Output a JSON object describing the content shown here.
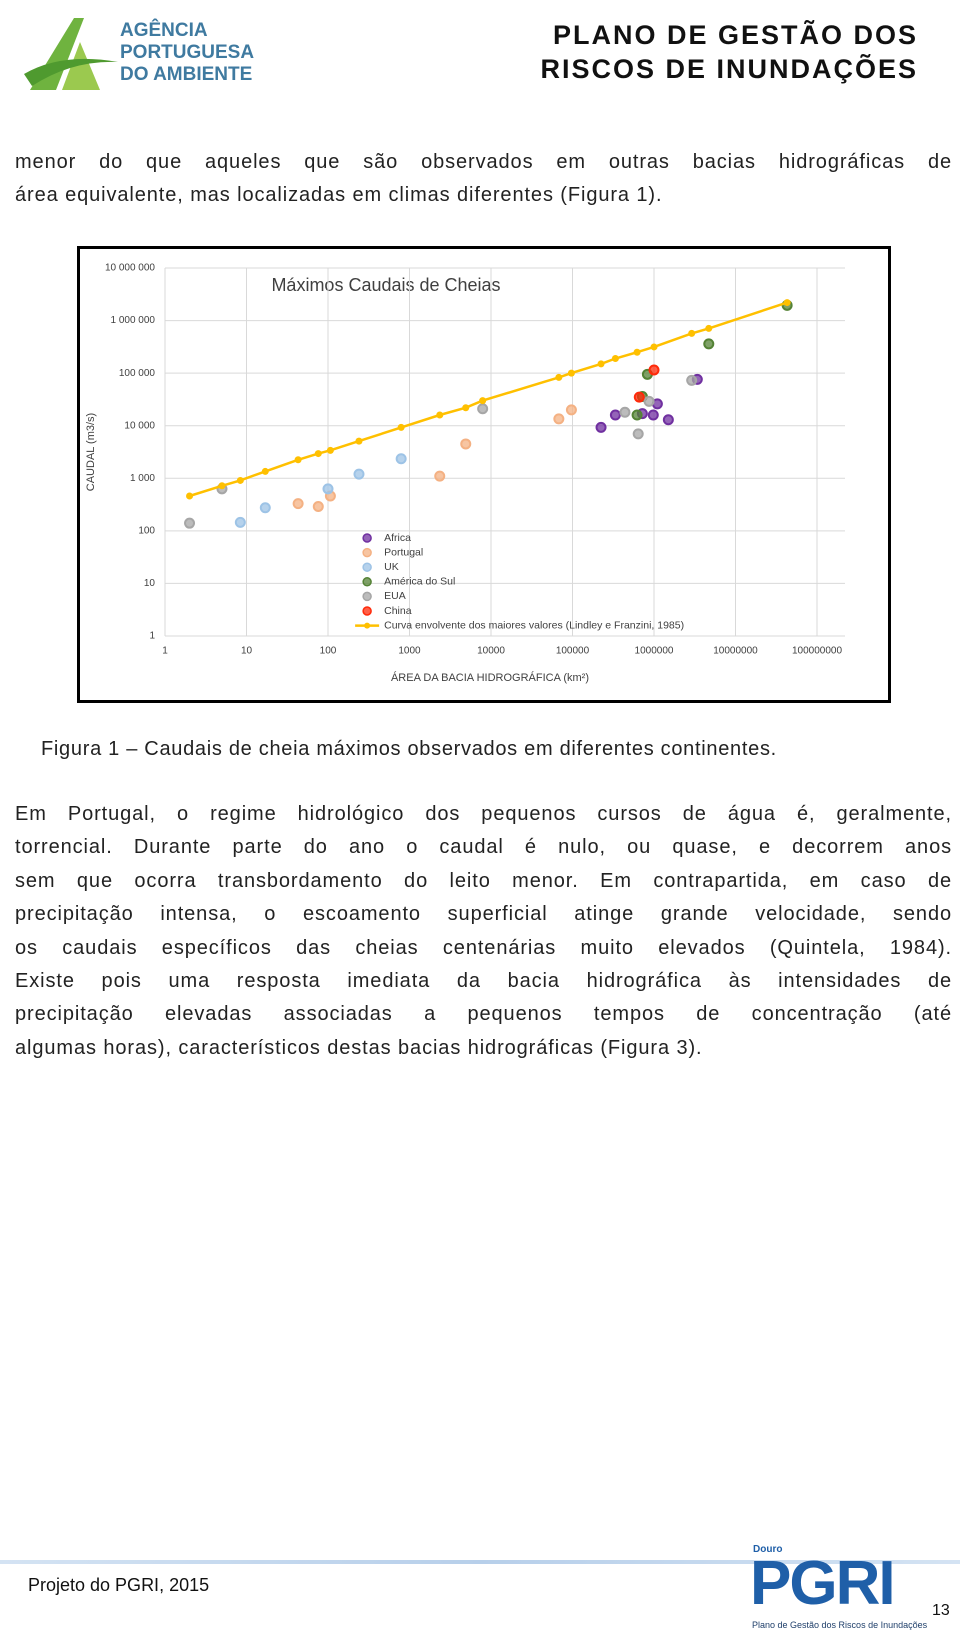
{
  "header": {
    "logo": [
      "AGÊNCIA",
      "PORTUGUESA",
      "DO AMBIENTE"
    ],
    "title": [
      "PLANO DE GESTÃO DOS",
      "RISCOS DE INUNDAÇÕES"
    ]
  },
  "paragraph_1": [
    "menor do que aqueles que são observados em outras bacias hidrográficas de",
    "área equivalente, mas localizadas em climas diferentes (Figura 1)."
  ],
  "chart_data": {
    "type": "scatter",
    "title": "Máximos Caudais de Cheias",
    "x_label": "ÁREA DA BACIA HIDROGRÁFICA (km²)",
    "y_label": "CAUDAL (m3/s)",
    "xscale": "log",
    "yscale": "log",
    "grid": true,
    "legend": "lower center",
    "xlim": [
      1,
      100000000
    ],
    "xticks": [
      1,
      10,
      100,
      1000,
      10000,
      100000,
      1000000,
      10000000,
      100000000
    ],
    "ylim": [
      1,
      10000000
    ],
    "yticks": [
      1,
      10,
      100,
      {
        "value": 1000,
        "label": "1 000"
      },
      {
        "value": 10000,
        "label": "10 000"
      },
      {
        "value": 100000,
        "label": "100 000"
      },
      {
        "value": 1000000,
        "label": "1 000 000"
      },
      {
        "value": 10000000,
        "label": "10 000 000"
      }
    ],
    "series": [
      {
        "name": "Africa",
        "color": "#7030a0",
        "x": [
          224000,
          336000,
          720000,
          980000,
          1100000,
          1500000,
          3400000
        ],
        "values": [
          9300,
          16000,
          17000,
          16000,
          26000,
          13000,
          76000
        ]
      },
      {
        "name": "Portugal",
        "color": "#f4b183",
        "x": [
          43,
          76,
          107,
          2350,
          4900,
          68000,
          97000
        ],
        "values": [
          330,
          290,
          460,
          1100,
          4500,
          13500,
          20000
        ]
      },
      {
        "name": "UK",
        "color": "#9dc3e6",
        "x": [
          8.4,
          17,
          100,
          240,
          790
        ],
        "values": [
          145,
          275,
          630,
          1200,
          2350
        ]
      },
      {
        "name": "América do Sul",
        "color": "#548235",
        "x": [
          43000000,
          4700000,
          830000,
          720000,
          620000
        ],
        "values": [
          1950000,
          360000,
          95000,
          36000,
          16000
        ]
      },
      {
        "name": "EUA",
        "color": "#a6a6a6",
        "x": [
          2,
          5,
          7900,
          440000,
          640000,
          870000,
          2900000
        ],
        "values": [
          140,
          630,
          21000,
          18000,
          7000,
          29000,
          73000
        ]
      },
      {
        "name": "China",
        "color": "#ff2a0a",
        "x": [
          660000,
          1000000
        ],
        "values": [
          35000,
          115000
        ]
      },
      {
        "name": "Curva envolvente dos maiores valores (Lindley e Franzini, 1985)",
        "color": "#ffc000",
        "type": "line",
        "x": [
          2,
          5,
          8.4,
          17,
          43,
          76,
          107,
          240,
          790,
          2350,
          4900,
          7900,
          68000,
          97000,
          224000,
          336000,
          620000,
          1000000,
          2900000,
          4700000,
          43000000
        ],
        "values": [
          460,
          720,
          910,
          1350,
          2250,
          2950,
          3400,
          5100,
          9300,
          16000,
          22000,
          30000,
          83000,
          100000,
          150000,
          190000,
          250000,
          315000,
          570000,
          710000,
          2200000
        ]
      }
    ]
  },
  "caption": "Figura 1 – Caudais de cheia máximos observados em diferentes continentes.",
  "paragraph_2": [
    "Em Portugal, o regime hidrológico dos pequenos cursos de água é, geralmente,",
    "torrencial. Durante parte do ano o caudal é nulo, ou quase, e decorrem anos",
    "sem que ocorra transbordamento do leito menor. Em contrapartida, em caso de",
    "precipitação intensa, o escoamento superficial atinge grande velocidade, sendo",
    "os caudais específicos das cheias centenárias muito elevados (Quintela, 1984).",
    "Existe pois uma resposta imediata da bacia hidrográfica às intensidades de",
    "precipitação elevadas associadas a pequenos tempos de concentração (até",
    "algumas horas), característicos destas bacias hidrográficas (Figura 3)."
  ],
  "footer": {
    "project": "Projeto do PGRI, 2015",
    "logo": {
      "region": "Douro",
      "name": "PGRI",
      "subtitle": "Plano de Gestão dos Riscos de Inundações"
    },
    "page_number": 13
  }
}
